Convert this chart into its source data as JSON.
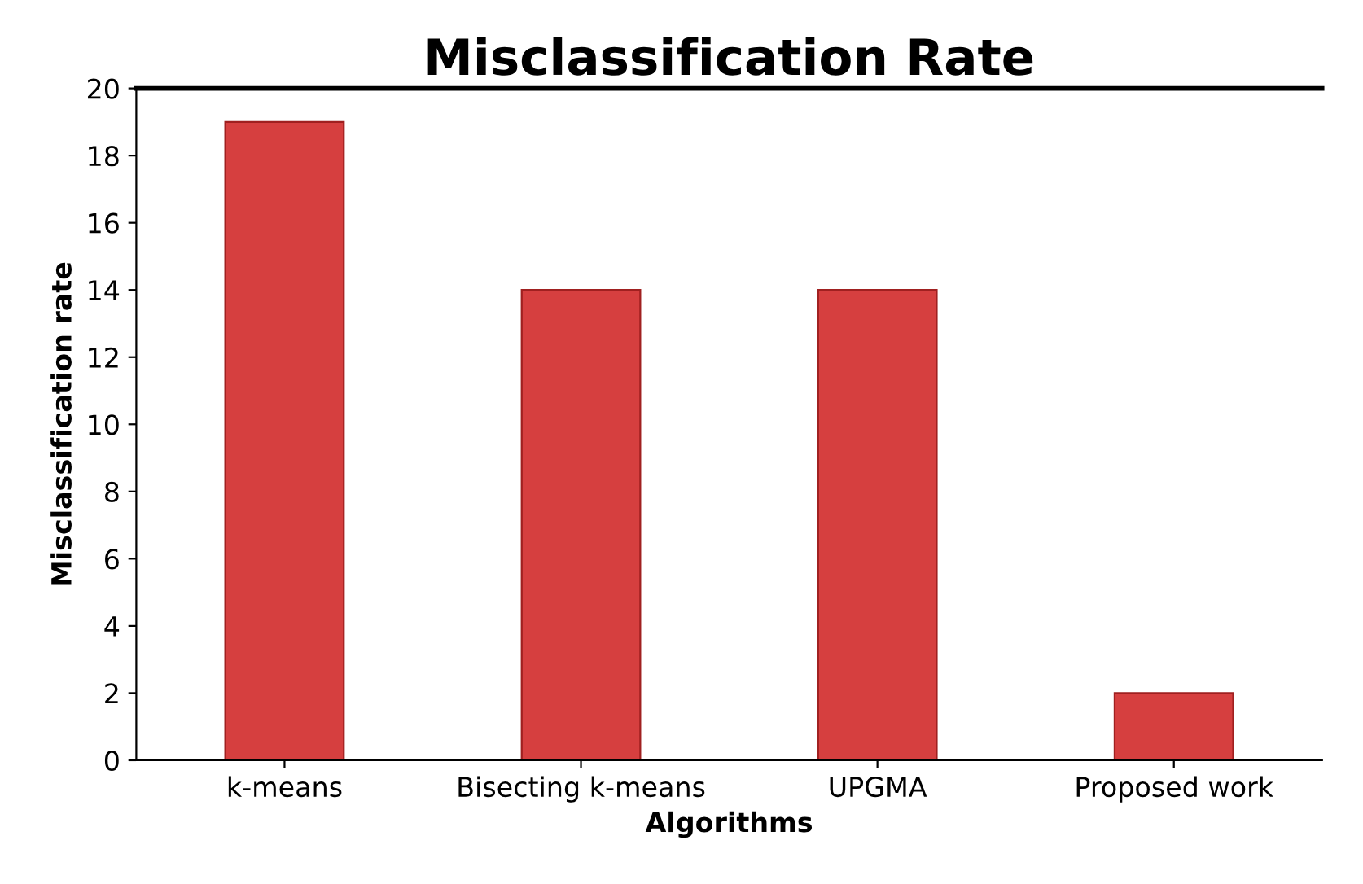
{
  "chart_data": {
    "type": "bar",
    "title": "Misclassification Rate",
    "xlabel": "Algorithms",
    "ylabel": "Misclassification rate",
    "categories": [
      "k-means",
      "Bisecting k-means",
      "UPGMA",
      "Proposed work"
    ],
    "values": [
      19,
      14,
      14,
      2
    ],
    "color": "#d63f3f",
    "ylim": [
      0,
      20
    ],
    "yticks": [
      0,
      2,
      4,
      6,
      8,
      10,
      12,
      14,
      16,
      18,
      20
    ],
    "grid": false
  }
}
